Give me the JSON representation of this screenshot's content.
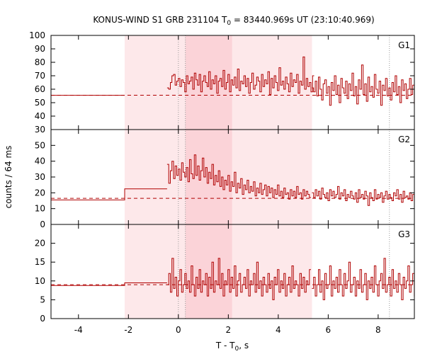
{
  "chart_data": {
    "type": "line",
    "title_parts": {
      "prefix": "KONUS-WIND S1 GRB 231104 T",
      "sub": "0",
      "suffix": " = 83440.969s UT (23:10:40.969)"
    },
    "xlabel_parts": {
      "prefix": "T - T",
      "sub": "0",
      "suffix": ", s"
    },
    "ylabel": "counts / 64 ms",
    "xlim": [
      -5.1,
      9.45
    ],
    "x_ticks": [
      -4,
      -2,
      0,
      2,
      4,
      6,
      8
    ],
    "shaded_intervals": [
      {
        "x0": -2.15,
        "x1": 5.35,
        "shade": "light"
      },
      {
        "x0": 0.28,
        "x1": 2.15,
        "shade": "dark"
      }
    ],
    "vertical_dotted_lines": [
      0.0,
      0.28,
      8.45
    ],
    "series_color": "#b00000",
    "panels": [
      {
        "label": "G1",
        "ylim": [
          30,
          100
        ],
        "y_ticks": [
          30,
          40,
          50,
          60,
          70,
          80,
          90,
          100
        ],
        "background_level": 55.5,
        "steps_before_burst": [
          {
            "x0": -5.1,
            "x1": -2.15,
            "value": 55.5
          }
        ],
        "segments": [
          {
            "start": -0.45,
            "bin": 0.064,
            "values": [
              61,
              60,
              65,
              70,
              71,
              63,
              66,
              68,
              62,
              67,
              65,
              58,
              70,
              64,
              66,
              69,
              60,
              72,
              67,
              63,
              71,
              58,
              66,
              70,
              65,
              62,
              73,
              60,
              67,
              64,
              70,
              57,
              66,
              68,
              62,
              74,
              60,
              65,
              71,
              58,
              67,
              63,
              69,
              61,
              75,
              59,
              66,
              64,
              70,
              62,
              68,
              57,
              65,
              72,
              60,
              63,
              69,
              66,
              58,
              71,
              62,
              67,
              64,
              73,
              56,
              68,
              61,
              70,
              65,
              59,
              76,
              63,
              66,
              60,
              69,
              64,
              58,
              72,
              62,
              67,
              65,
              71,
              57,
              66,
              63,
              84,
              60,
              68,
              62,
              65,
              58,
              70
            ]
          },
          {
            "start": 5.35,
            "bin": 0.064,
            "values": [
              61,
              58,
              66,
              55,
              69,
              60,
              52,
              64,
              67,
              57,
              62,
              48,
              65,
              59,
              70,
              56,
              63,
              50,
              68,
              61,
              57,
              66,
              53,
              64,
              59,
              72,
              55,
              62,
              49,
              67,
              60,
              78,
              56,
              64,
              51,
              69,
              58,
              62,
              54,
              71,
              60,
              57,
              66,
              48,
              63,
              59,
              68,
              55,
              61,
              52,
              65,
              58,
              70,
              56,
              62,
              50,
              67,
              59,
              64,
              53,
              60,
              68,
              56,
              63,
              49,
              66,
              58,
              61,
              55,
              70,
              57,
              64,
              52,
              67,
              60,
              59,
              66,
              54,
              62,
              68,
              56,
              58,
              70,
              61,
              55,
              64,
              57,
              60,
              67,
              53,
              62,
              58,
              65,
              56
            ]
          }
        ]
      },
      {
        "label": "G2",
        "ylim": [
          0,
          60
        ],
        "y_ticks": [
          0,
          10,
          20,
          30,
          40,
          50
        ],
        "background_level": 16.5,
        "steps_before_burst": [
          {
            "x0": -5.1,
            "x1": -2.15,
            "value": 15.5
          },
          {
            "x0": -2.15,
            "x1": -0.45,
            "value": 22.5
          }
        ],
        "segments": [
          {
            "start": -0.45,
            "bin": 0.064,
            "values": [
              38,
              26,
              34,
              40,
              29,
              37,
              31,
              35,
              28,
              39,
              33,
              30,
              36,
              27,
              41,
              32,
              29,
              44,
              31,
              37,
              28,
              34,
              42,
              30,
              36,
              26,
              33,
              29,
              38,
              25,
              31,
              27,
              34,
              24,
              30,
              22,
              28,
              25,
              31,
              21,
              27,
              24,
              33,
              20,
              26,
              23,
              29,
              19,
              25,
              22,
              28,
              20,
              24,
              21,
              27,
              18,
              23,
              20,
              26,
              19,
              22,
              25,
              18,
              24,
              20,
              23,
              17,
              22,
              19,
              25,
              18,
              21,
              17,
              23,
              19,
              20,
              16,
              22,
              18,
              21,
              17,
              24,
              19,
              20,
              16,
              22,
              18,
              21,
              19,
              17
            ]
          },
          {
            "start": 5.35,
            "bin": 0.064,
            "values": [
              20,
              17,
              22,
              18,
              21,
              16,
              23,
              19,
              17,
              20,
              15,
              22,
              18,
              21,
              17,
              19,
              24,
              16,
              20,
              18,
              22,
              15,
              19,
              17,
              21,
              18,
              16,
              20,
              14,
              22,
              17,
              19,
              16,
              21,
              18,
              12,
              20,
              17,
              15,
              22,
              16,
              19,
              17,
              20,
              14,
              18,
              21,
              16,
              19,
              17,
              15,
              20,
              18,
              22,
              16,
              19,
              14,
              21,
              17,
              18,
              16,
              20,
              15,
              19,
              17,
              21,
              14,
              18,
              16,
              20,
              17,
              15,
              19,
              16,
              22,
              17,
              18,
              15,
              20,
              16,
              19,
              14,
              21,
              17,
              18,
              16,
              20,
              15,
              19
            ]
          }
        ]
      },
      {
        "label": "G3",
        "ylim": [
          0,
          25
        ],
        "y_ticks": [
          0,
          5,
          10,
          15,
          20
        ],
        "background_level": 9.0,
        "steps_before_burst": [
          {
            "x0": -5.1,
            "x1": -2.15,
            "value": 8.8
          },
          {
            "x0": -2.15,
            "x1": -0.45,
            "value": 9.5
          }
        ],
        "segments": [
          {
            "start": -0.45,
            "bin": 0.064,
            "values": [
              9,
              12,
              7,
              16,
              8,
              11,
              6,
              10,
              13,
              7,
              9,
              12,
              8,
              10,
              7,
              14,
              9,
              6,
              11,
              8,
              13,
              7,
              10,
              9,
              12,
              6,
              11,
              8,
              15,
              7,
              10,
              9,
              16,
              8,
              12,
              6,
              10,
              9,
              13,
              7,
              11,
              8,
              14,
              6,
              10,
              12,
              7,
              9,
              11,
              8,
              13,
              6,
              10,
              9,
              12,
              7,
              15,
              8,
              10,
              6,
              11,
              9,
              7,
              12,
              8,
              10,
              5,
              11,
              9,
              13,
              7,
              10,
              8,
              12,
              6,
              9,
              11,
              7,
              14,
              8,
              10,
              9,
              6,
              12,
              8,
              11,
              7,
              10,
              9,
              13
            ]
          },
          {
            "start": 5.35,
            "bin": 0.064,
            "values": [
              8,
              11,
              6,
              9,
              13,
              7,
              10,
              5,
              12,
              8,
              9,
              14,
              6,
              10,
              8,
              11,
              7,
              13,
              9,
              6,
              12,
              8,
              10,
              15,
              7,
              9,
              11,
              6,
              10,
              8,
              13,
              7,
              9,
              12,
              5,
              10,
              8,
              11,
              7,
              14,
              9,
              6,
              10,
              12,
              8,
              16,
              7,
              9,
              11,
              6,
              13,
              8,
              10,
              7,
              12,
              9,
              5,
              11,
              8,
              10,
              14,
              7,
              9,
              12,
              6,
              10,
              8,
              11,
              7,
              13,
              9,
              18,
              8,
              10,
              6,
              12,
              9,
              7,
              11,
              8,
              13,
              10,
              6,
              9,
              12,
              8,
              11,
              7,
              10,
              9
            ]
          }
        ]
      }
    ]
  }
}
